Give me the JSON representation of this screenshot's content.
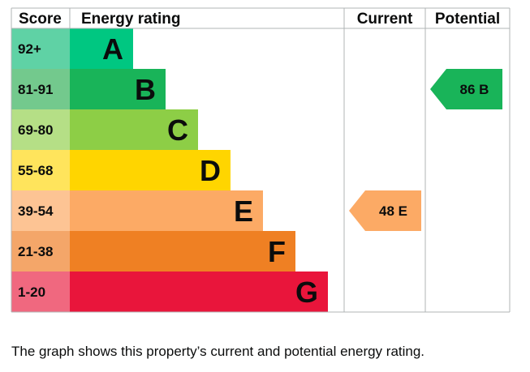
{
  "chart_data": {
    "type": "bar",
    "headers": {
      "score": "Score",
      "rating": "Energy rating",
      "current": "Current",
      "potential": "Potential"
    },
    "bands": [
      {
        "score": "92+",
        "letter": "A",
        "color": "#00c781",
        "score_bg": "#5fd2a5"
      },
      {
        "score": "81-91",
        "letter": "B",
        "color": "#19b459",
        "score_bg": "#73c98d"
      },
      {
        "score": "69-80",
        "letter": "C",
        "color": "#8dce46",
        "score_bg": "#b5df86"
      },
      {
        "score": "55-68",
        "letter": "D",
        "color": "#ffd500",
        "score_bg": "#ffe45c"
      },
      {
        "score": "39-54",
        "letter": "E",
        "color": "#fcaa65",
        "score_bg": "#fdc494"
      },
      {
        "score": "21-38",
        "letter": "F",
        "color": "#ef8023",
        "score_bg": "#f4a669"
      },
      {
        "score": "1-20",
        "letter": "G",
        "color": "#e9153b",
        "score_bg": "#f0687f"
      }
    ],
    "current": {
      "value": 48,
      "band": "E",
      "label": "48 E",
      "color": "#fcaa65"
    },
    "potential": {
      "value": 86,
      "band": "B",
      "label": "86 B",
      "color": "#19b459"
    }
  },
  "caption": "The graph shows this property’s current and potential energy rating."
}
